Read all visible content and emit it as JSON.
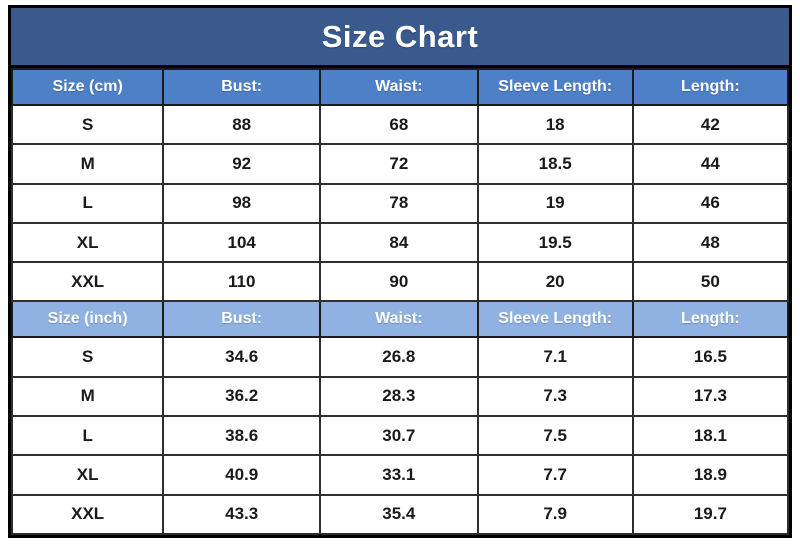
{
  "title": "Size Chart",
  "colors": {
    "title_bg": "#3A5A8E",
    "cm_header_bg": "#4E80C8",
    "inch_header_bg": "#8FB2E2",
    "header_text": "#FFFFFF",
    "cell_text": "#1A1A1A",
    "border_dark": "#000000",
    "row_border": "#2E2E2E"
  },
  "table": {
    "sections": [
      {
        "unit": "cm",
        "headers": [
          "Size (cm)",
          "Bust:",
          "Waist:",
          "Sleeve Length:",
          "Length:"
        ],
        "rows": [
          [
            "S",
            "88",
            "68",
            "18",
            "42"
          ],
          [
            "M",
            "92",
            "72",
            "18.5",
            "44"
          ],
          [
            "L",
            "98",
            "78",
            "19",
            "46"
          ],
          [
            "XL",
            "104",
            "84",
            "19.5",
            "48"
          ],
          [
            "XXL",
            "110",
            "90",
            "20",
            "50"
          ]
        ]
      },
      {
        "unit": "inch",
        "headers": [
          "Size (inch)",
          "Bust:",
          "Waist:",
          "Sleeve Length:",
          "Length:"
        ],
        "rows": [
          [
            "S",
            "34.6",
            "26.8",
            "7.1",
            "16.5"
          ],
          [
            "M",
            "36.2",
            "28.3",
            "7.3",
            "17.3"
          ],
          [
            "L",
            "38.6",
            "30.7",
            "7.5",
            "18.1"
          ],
          [
            "XL",
            "40.9",
            "33.1",
            "7.7",
            "18.9"
          ],
          [
            "XXL",
            "43.3",
            "35.4",
            "7.9",
            "19.7"
          ]
        ]
      }
    ]
  },
  "chart_data": [
    {
      "type": "table",
      "title": "Size Chart (cm)",
      "columns": [
        "Size (cm)",
        "Bust:",
        "Waist:",
        "Sleeve Length:",
        "Length:"
      ],
      "rows": [
        [
          "S",
          88,
          68,
          18,
          42
        ],
        [
          "M",
          92,
          72,
          18.5,
          44
        ],
        [
          "L",
          98,
          78,
          19,
          46
        ],
        [
          "XL",
          104,
          84,
          19.5,
          48
        ],
        [
          "XXL",
          110,
          90,
          20,
          50
        ]
      ]
    },
    {
      "type": "table",
      "title": "Size Chart (inch)",
      "columns": [
        "Size (inch)",
        "Bust:",
        "Waist:",
        "Sleeve Length:",
        "Length:"
      ],
      "rows": [
        [
          "S",
          34.6,
          26.8,
          7.1,
          16.5
        ],
        [
          "M",
          36.2,
          28.3,
          7.3,
          17.3
        ],
        [
          "L",
          38.6,
          30.7,
          7.5,
          18.1
        ],
        [
          "XL",
          40.9,
          33.1,
          7.7,
          18.9
        ],
        [
          "XXL",
          43.3,
          35.4,
          7.9,
          19.7
        ]
      ]
    }
  ]
}
